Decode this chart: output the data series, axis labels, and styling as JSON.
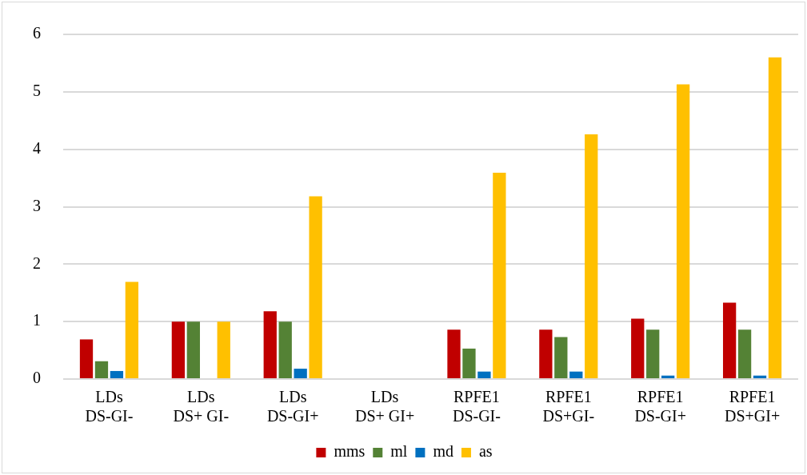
{
  "chart_data": {
    "type": "bar",
    "categories": [
      "LDs\nDS-GI-",
      "LDs\nDS+ GI-",
      "LDs\nDS-GI+",
      "LDs\nDS+ GI+",
      "RPFE1\nDS-GI-",
      "RPFE1\nDS+GI-",
      "RPFE1\nDS-GI+",
      "RPFE1\nDS+GI+"
    ],
    "series": [
      {
        "name": "mms",
        "color": "#c00000",
        "values": [
          0.69,
          1,
          1.18,
          0,
          0.86,
          0.86,
          1.05,
          1.33
        ]
      },
      {
        "name": "ml",
        "color": "#548235",
        "values": [
          0.31,
          1,
          1,
          0,
          0.53,
          0.73,
          0.86,
          0.86
        ]
      },
      {
        "name": "md",
        "color": "#0070c0",
        "values": [
          0.14,
          0,
          0.18,
          0,
          0.13,
          0.13,
          0.06,
          0.06
        ]
      },
      {
        "name": "as",
        "color": "#ffc000",
        "values": [
          1.69,
          1,
          3.18,
          0,
          3.59,
          4.26,
          5.13,
          5.6
        ]
      }
    ],
    "ylim": [
      0,
      6
    ],
    "yticks": [
      0,
      1,
      2,
      3,
      4,
      5,
      6
    ],
    "grid": "y",
    "legend": "bottom"
  }
}
